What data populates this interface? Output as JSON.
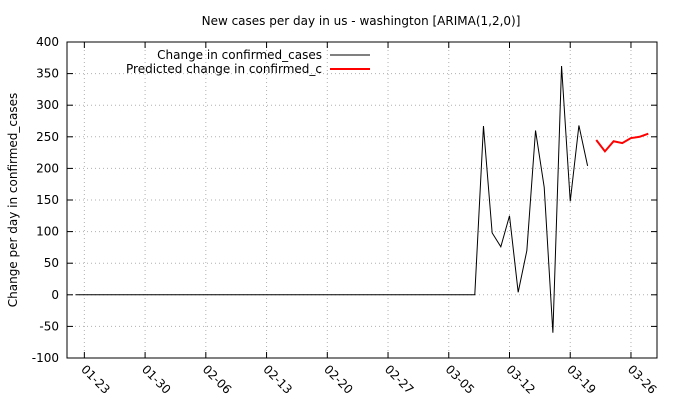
{
  "chart_data": {
    "type": "line",
    "title": "New cases per day in us - washington [ARIMA(1,2,0)]",
    "xlabel": "",
    "ylabel": "Change per day in confirmed_cases",
    "ylim": [
      -100,
      400
    ],
    "yticks": [
      -100,
      -50,
      0,
      50,
      100,
      150,
      200,
      250,
      300,
      350,
      400
    ],
    "xlim": [
      "01-21",
      "03-29"
    ],
    "xticks": [
      "01-23",
      "01-30",
      "02-06",
      "02-13",
      "02-20",
      "02-27",
      "03-05",
      "03-12",
      "03-19",
      "03-26"
    ],
    "grid": true,
    "legend_position": "top-left",
    "series": [
      {
        "name": "Change in confirmed_cases",
        "color": "#000000",
        "points": [
          {
            "x": "01-22",
            "y": 0
          },
          {
            "x": "01-23",
            "y": 0
          },
          {
            "x": "01-24",
            "y": 0
          },
          {
            "x": "01-25",
            "y": 0
          },
          {
            "x": "01-26",
            "y": 0
          },
          {
            "x": "01-27",
            "y": 0
          },
          {
            "x": "01-28",
            "y": 0
          },
          {
            "x": "01-29",
            "y": 0
          },
          {
            "x": "01-30",
            "y": 0
          },
          {
            "x": "01-31",
            "y": 0
          },
          {
            "x": "02-01",
            "y": 0
          },
          {
            "x": "02-02",
            "y": 0
          },
          {
            "x": "02-03",
            "y": 0
          },
          {
            "x": "02-04",
            "y": 0
          },
          {
            "x": "02-05",
            "y": 0
          },
          {
            "x": "02-06",
            "y": 0
          },
          {
            "x": "02-07",
            "y": 0
          },
          {
            "x": "02-08",
            "y": 0
          },
          {
            "x": "02-09",
            "y": 0
          },
          {
            "x": "02-10",
            "y": 0
          },
          {
            "x": "02-11",
            "y": 0
          },
          {
            "x": "02-12",
            "y": 0
          },
          {
            "x": "02-13",
            "y": 0
          },
          {
            "x": "02-14",
            "y": 0
          },
          {
            "x": "02-15",
            "y": 0
          },
          {
            "x": "02-16",
            "y": 0
          },
          {
            "x": "02-17",
            "y": 0
          },
          {
            "x": "02-18",
            "y": 0
          },
          {
            "x": "02-19",
            "y": 0
          },
          {
            "x": "02-20",
            "y": 0
          },
          {
            "x": "02-21",
            "y": 0
          },
          {
            "x": "02-22",
            "y": 0
          },
          {
            "x": "02-23",
            "y": 0
          },
          {
            "x": "02-24",
            "y": 0
          },
          {
            "x": "02-25",
            "y": 0
          },
          {
            "x": "02-26",
            "y": 0
          },
          {
            "x": "02-27",
            "y": 0
          },
          {
            "x": "02-28",
            "y": 0
          },
          {
            "x": "02-29",
            "y": 0
          },
          {
            "x": "03-01",
            "y": 0
          },
          {
            "x": "03-02",
            "y": 0
          },
          {
            "x": "03-03",
            "y": 0
          },
          {
            "x": "03-04",
            "y": 0
          },
          {
            "x": "03-05",
            "y": 0
          },
          {
            "x": "03-06",
            "y": 0
          },
          {
            "x": "03-07",
            "y": 0
          },
          {
            "x": "03-08",
            "y": 0
          },
          {
            "x": "03-09",
            "y": 267
          },
          {
            "x": "03-10",
            "y": 98
          },
          {
            "x": "03-11",
            "y": 76
          },
          {
            "x": "03-12",
            "y": 125
          },
          {
            "x": "03-13",
            "y": 4
          },
          {
            "x": "03-14",
            "y": 70
          },
          {
            "x": "03-15",
            "y": 260
          },
          {
            "x": "03-16",
            "y": 170
          },
          {
            "x": "03-17",
            "y": -60
          },
          {
            "x": "03-18",
            "y": 362
          },
          {
            "x": "03-19",
            "y": 148
          },
          {
            "x": "03-20",
            "y": 268
          },
          {
            "x": "03-21",
            "y": 204
          }
        ]
      },
      {
        "name": "Predicted change in confirmed_c",
        "color": "#ff0000",
        "points": [
          {
            "x": "03-22",
            "y": 245
          },
          {
            "x": "03-23",
            "y": 227
          },
          {
            "x": "03-24",
            "y": 243
          },
          {
            "x": "03-25",
            "y": 240
          },
          {
            "x": "03-26",
            "y": 248
          },
          {
            "x": "03-27",
            "y": 250
          },
          {
            "x": "03-28",
            "y": 255
          }
        ]
      }
    ]
  }
}
